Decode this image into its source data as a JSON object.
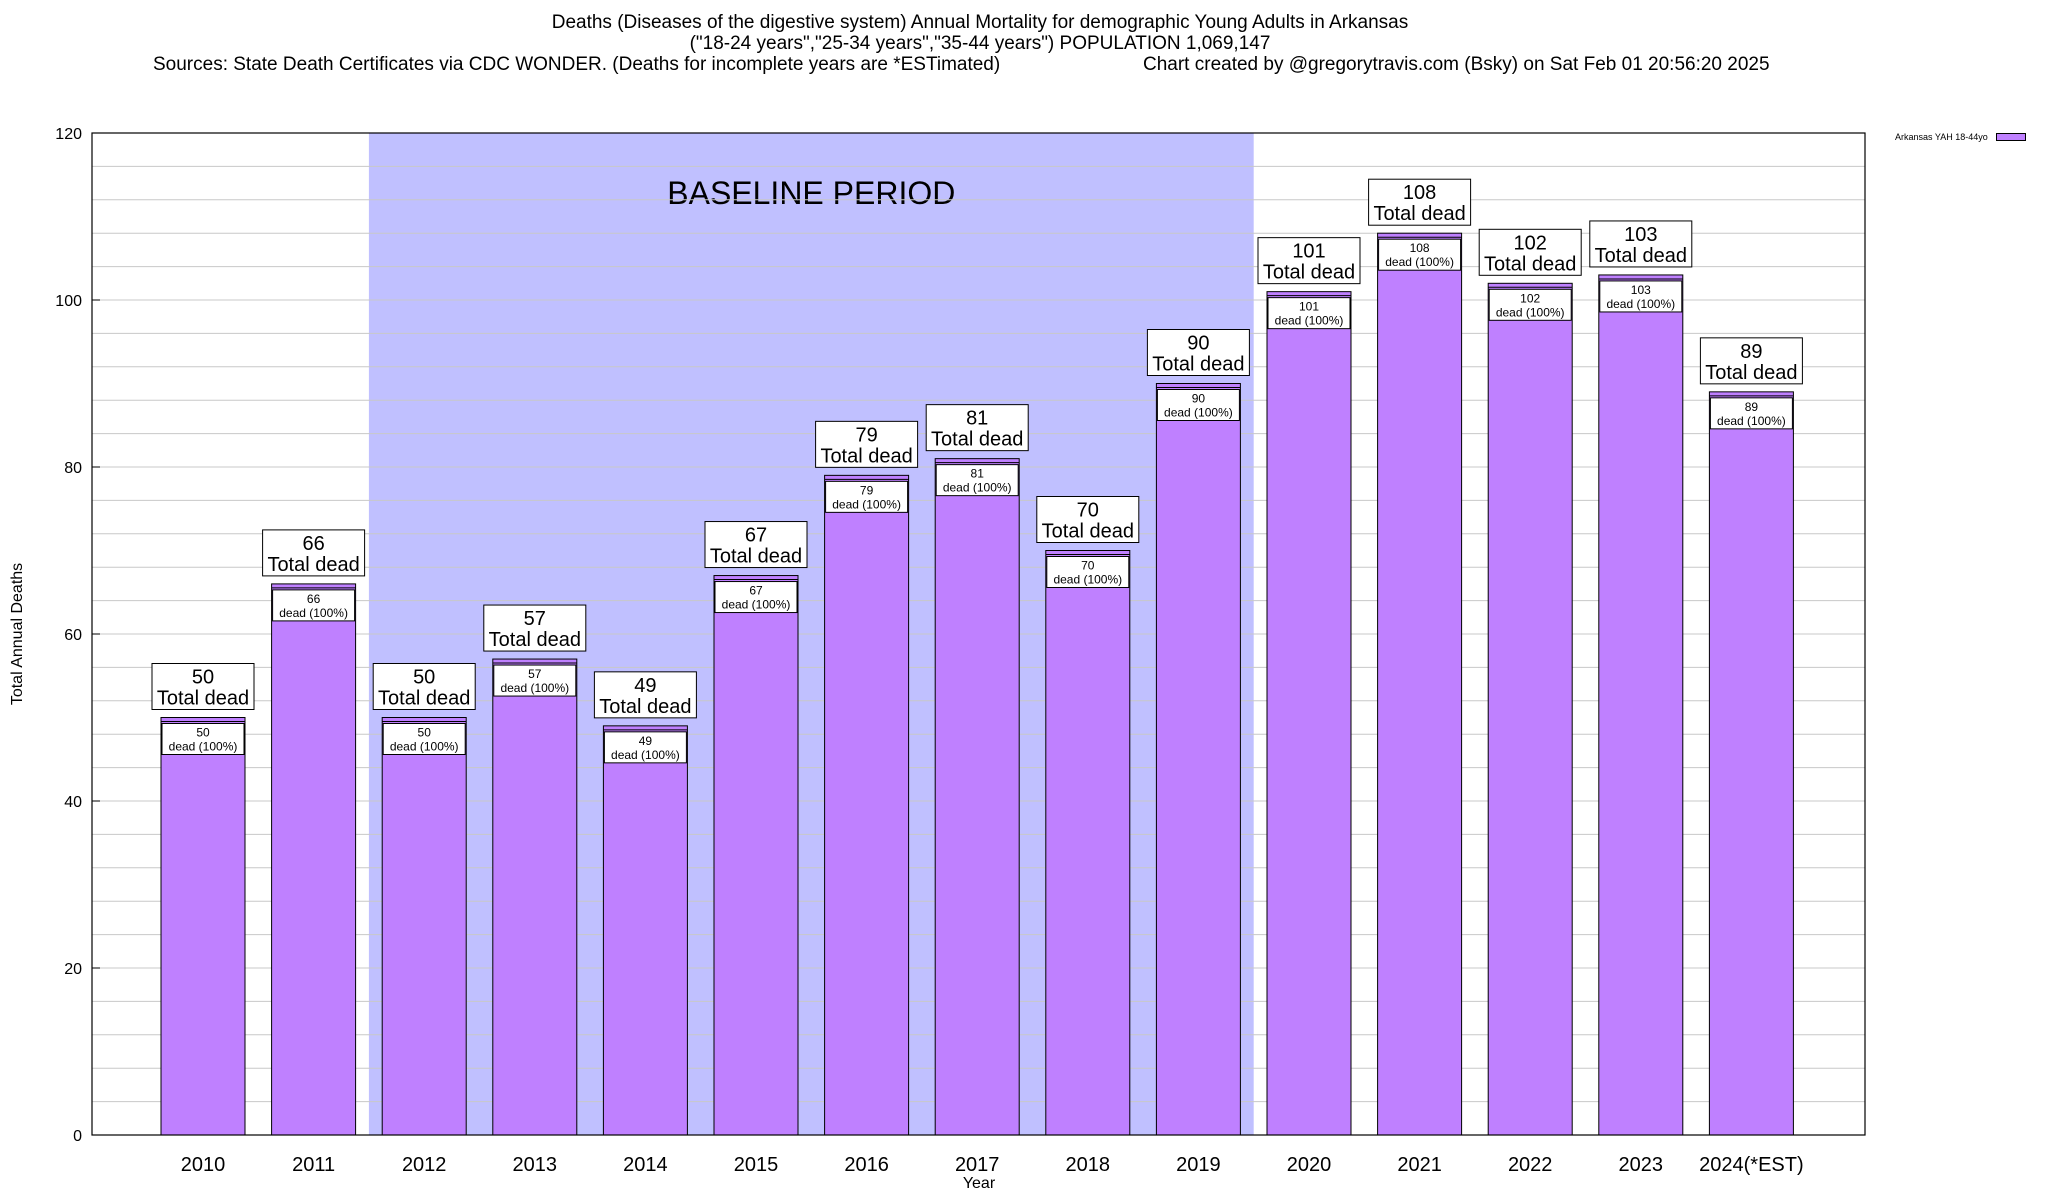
{
  "title": {
    "line1": "Deaths (Diseases of the digestive system) Annual Mortality for demographic Young Adults in Arkansas",
    "line2": "(\"18-24 years\",\"25-34 years\",\"35-44 years\") POPULATION 1,069,147",
    "sources": "Sources: State Death Certificates via CDC WONDER. (Deaths for incomplete years are *ESTimated)",
    "credit": "Chart created by @gregorytravis.com (Bsky) on Sat Feb 01 20:56:20 2025"
  },
  "legend": {
    "label": "Arkansas YAH 18-44yo"
  },
  "colors": {
    "bar": "#bf80ff",
    "baseline": "#c0c0ff",
    "grid": "#c8c8c8"
  },
  "chart_data": {
    "type": "bar",
    "title": "Deaths (Diseases of the digestive system) Annual Mortality for demographic Young Adults in Arkansas",
    "xlabel": "Year",
    "ylabel": "Total Annual Deaths",
    "ylim": [
      0,
      120
    ],
    "yticks": [
      0,
      20,
      40,
      60,
      80,
      100,
      120
    ],
    "grid": true,
    "legend_position": "top-right",
    "categories": [
      "2010",
      "2011",
      "2012",
      "2013",
      "2014",
      "2015",
      "2016",
      "2017",
      "2018",
      "2019",
      "2020",
      "2021",
      "2022",
      "2023",
      "2024(*EST)"
    ],
    "series": [
      {
        "name": "Arkansas YAH 18-44yo",
        "values": [
          50,
          66,
          50,
          57,
          49,
          67,
          79,
          81,
          70,
          90,
          101,
          108,
          102,
          103,
          89
        ]
      }
    ],
    "total_label": "Total dead",
    "inner_label": "dead (100%)",
    "baseline": {
      "label": "BASELINE PERIOD",
      "from": "2012",
      "to": "2019"
    }
  }
}
